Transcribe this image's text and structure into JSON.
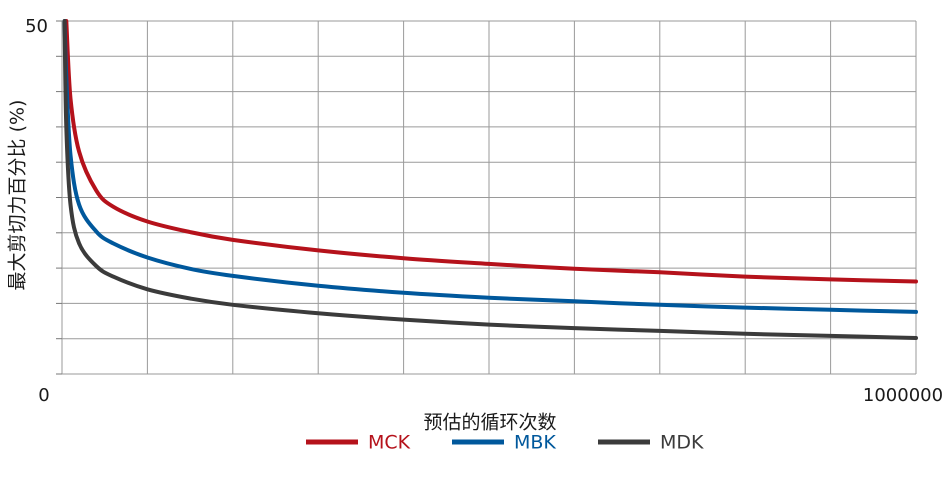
{
  "chart_data": {
    "type": "line",
    "xlabel": "预估的循环次数",
    "ylabel": "最大剪切力百分比 (%)",
    "xlim": [
      0,
      1000000
    ],
    "ylim": [
      0,
      50
    ],
    "x_tick_labels": [
      "0",
      "1000000"
    ],
    "y_tick_labels": [
      "50"
    ],
    "grid": true,
    "grid_divisions": {
      "x": 10,
      "y": 10
    },
    "legend_position": "bottom-center",
    "series": [
      {
        "name": "MCK",
        "color": "#b5121b",
        "x": [
          5000,
          10000,
          20000,
          40000,
          60000,
          100000,
          150000,
          200000,
          300000,
          400000,
          500000,
          600000,
          700000,
          800000,
          900000,
          1000000
        ],
        "y": [
          50,
          39,
          31.5,
          26,
          23.7,
          21.6,
          20.1,
          19.0,
          17.5,
          16.4,
          15.6,
          14.9,
          14.4,
          13.8,
          13.4,
          13.1
        ]
      },
      {
        "name": "MBK",
        "color": "#00589c",
        "x": [
          3000,
          5000,
          10000,
          20000,
          40000,
          60000,
          100000,
          150000,
          200000,
          300000,
          400000,
          500000,
          600000,
          700000,
          800000,
          900000,
          1000000
        ],
        "y": [
          50,
          42,
          31,
          24,
          20.2,
          18.5,
          16.5,
          14.9,
          13.9,
          12.5,
          11.5,
          10.8,
          10.3,
          9.8,
          9.4,
          9.1,
          8.8
        ]
      },
      {
        "name": "MDK",
        "color": "#3b3b3b",
        "x": [
          3000,
          5000,
          10000,
          20000,
          40000,
          60000,
          100000,
          150000,
          200000,
          300000,
          400000,
          500000,
          600000,
          700000,
          800000,
          900000,
          1000000
        ],
        "y": [
          50,
          35,
          24,
          18.5,
          15.3,
          13.8,
          12.0,
          10.7,
          9.8,
          8.6,
          7.7,
          7.0,
          6.5,
          6.1,
          5.7,
          5.4,
          5.1
        ]
      }
    ]
  }
}
